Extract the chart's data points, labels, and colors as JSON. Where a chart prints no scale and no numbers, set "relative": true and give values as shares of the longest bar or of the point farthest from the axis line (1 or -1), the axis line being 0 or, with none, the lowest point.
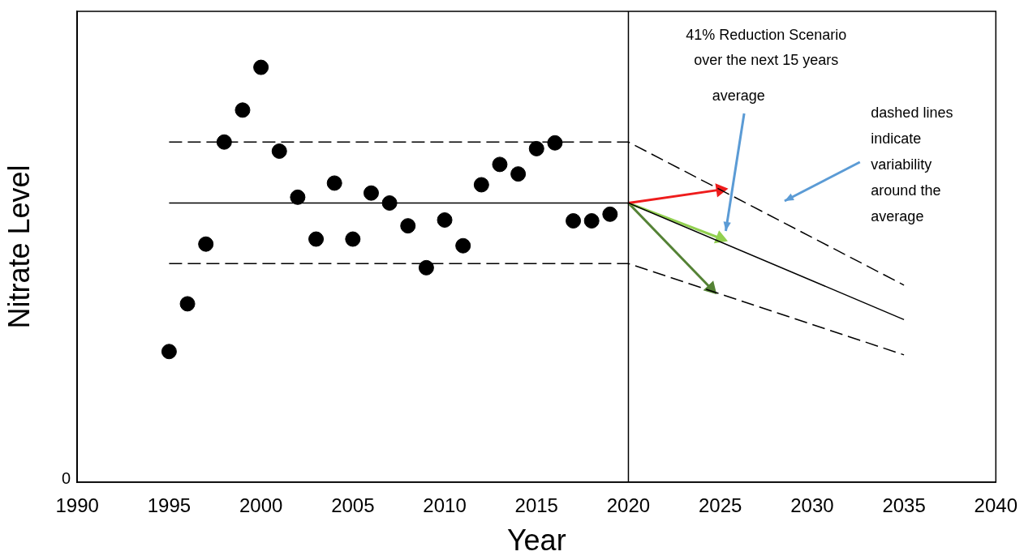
{
  "chart_data": {
    "type": "scatter",
    "relative": true,
    "xlabel": "Year",
    "ylabel": "Nitrate Level",
    "xlim": [
      1990,
      2040
    ],
    "xticks": [
      1990,
      1995,
      2000,
      2005,
      2010,
      2015,
      2020,
      2025,
      2030,
      2035,
      2040
    ],
    "grid": false,
    "legend": false,
    "ref_lines": [
      {
        "axis": "x",
        "value": 2020,
        "color": "#000000",
        "line_style": "solid"
      }
    ],
    "annotations": [
      "0",
      "41% Reduction Scenario",
      "over the next 15 years",
      "average",
      "dashed lines indicate variability around the average"
    ],
    "series": [
      {
        "color": "#000000",
        "marker": "circle",
        "x": [
          1995,
          1996,
          1997,
          1998,
          1999,
          2000,
          2001,
          2002,
          2003,
          2004,
          2005,
          2006,
          2007,
          2008,
          2009,
          2010,
          2011,
          2012,
          2013,
          2014,
          2015,
          2016,
          2017,
          2018,
          2019
        ],
        "values": [
          0.315,
          0.43,
          0.574,
          0.82,
          0.897,
          1.0,
          0.798,
          0.687,
          0.586,
          0.721,
          0.586,
          0.697,
          0.673,
          0.618,
          0.517,
          0.632,
          0.57,
          0.717,
          0.766,
          0.743,
          0.804,
          0.818,
          0.63,
          0.63,
          0.646
        ]
      },
      {
        "type": "line",
        "color": "#000000",
        "marker": "none",
        "line_style": "solid",
        "x": [
          1995,
          2020,
          2035
        ],
        "values": [
          0.673,
          0.673,
          0.392
        ]
      },
      {
        "type": "line",
        "color": "#000000",
        "marker": "none",
        "line_style": "dashed",
        "x": [
          1995,
          2020,
          2035
        ],
        "values": [
          0.82,
          0.82,
          0.475
        ]
      },
      {
        "type": "line",
        "color": "#000000",
        "marker": "none",
        "line_style": "dashed",
        "x": [
          1995,
          2020,
          2035
        ],
        "values": [
          0.527,
          0.527,
          0.307
        ]
      },
      {
        "type": "line",
        "color": "#ee1c1c",
        "marker": "triangle",
        "line_style": "solid",
        "x": [
          2020,
          2025
        ],
        "values": [
          0.673,
          0.705
        ]
      },
      {
        "type": "line",
        "color": "#92d050",
        "marker": "triangle",
        "line_style": "solid",
        "x": [
          2020,
          2025
        ],
        "values": [
          0.673,
          0.588
        ]
      },
      {
        "type": "line",
        "color": "#548235",
        "marker": "triangle",
        "line_style": "solid",
        "x": [
          2020,
          2024.5
        ],
        "values": [
          0.673,
          0.467
        ]
      }
    ]
  }
}
